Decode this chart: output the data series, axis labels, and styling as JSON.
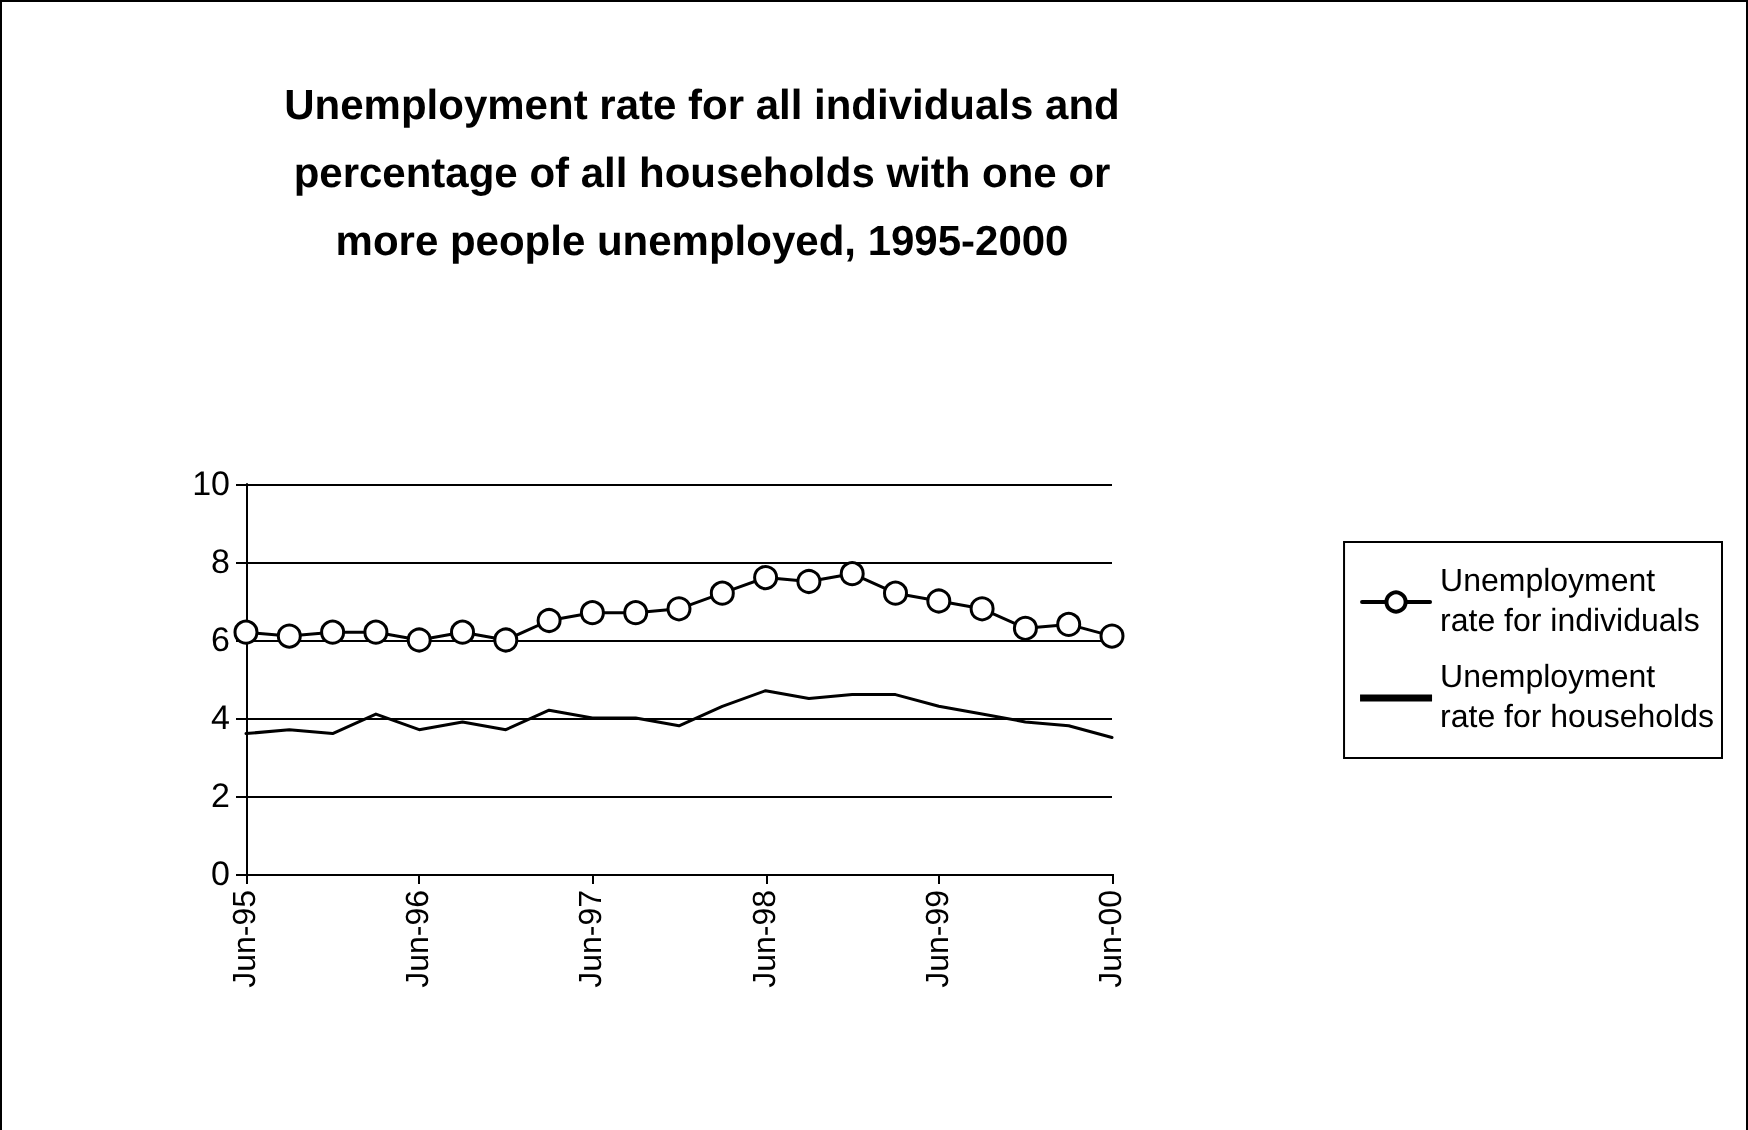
{
  "chart_data": {
    "type": "line",
    "title": "Unemployment rate for all individuals and\npercentage of all households with one or\nmore people unemployed, 1995-2000",
    "categories": [
      "Jun-95",
      null,
      null,
      null,
      "Jun-96",
      null,
      null,
      null,
      "Jun-97",
      null,
      null,
      null,
      "Jun-98",
      null,
      null,
      null,
      "Jun-99",
      null,
      null,
      null,
      "Jun-00"
    ],
    "series": [
      {
        "name": "Unemployment\nrate for individuals",
        "color": "#000000",
        "marker": "circle",
        "values": [
          6.2,
          6.1,
          6.2,
          6.2,
          6.0,
          6.2,
          6.0,
          6.5,
          6.7,
          6.7,
          6.8,
          7.2,
          7.6,
          7.5,
          7.7,
          7.2,
          7.0,
          6.8,
          6.3,
          6.4,
          6.1
        ]
      },
      {
        "name": "Unemployment\nrate for households",
        "color": "#000000",
        "marker": "none",
        "values": [
          3.6,
          3.7,
          3.6,
          4.1,
          3.7,
          3.9,
          3.7,
          4.2,
          4.0,
          4.0,
          3.8,
          4.3,
          4.7,
          4.5,
          4.6,
          4.6,
          4.3,
          4.1,
          3.9,
          3.8,
          3.5
        ]
      }
    ],
    "ylim": [
      0,
      10
    ],
    "yticks": [
      0,
      2,
      4,
      6,
      8,
      10
    ],
    "grid": "y",
    "legend": "right",
    "line_style": "solid"
  }
}
